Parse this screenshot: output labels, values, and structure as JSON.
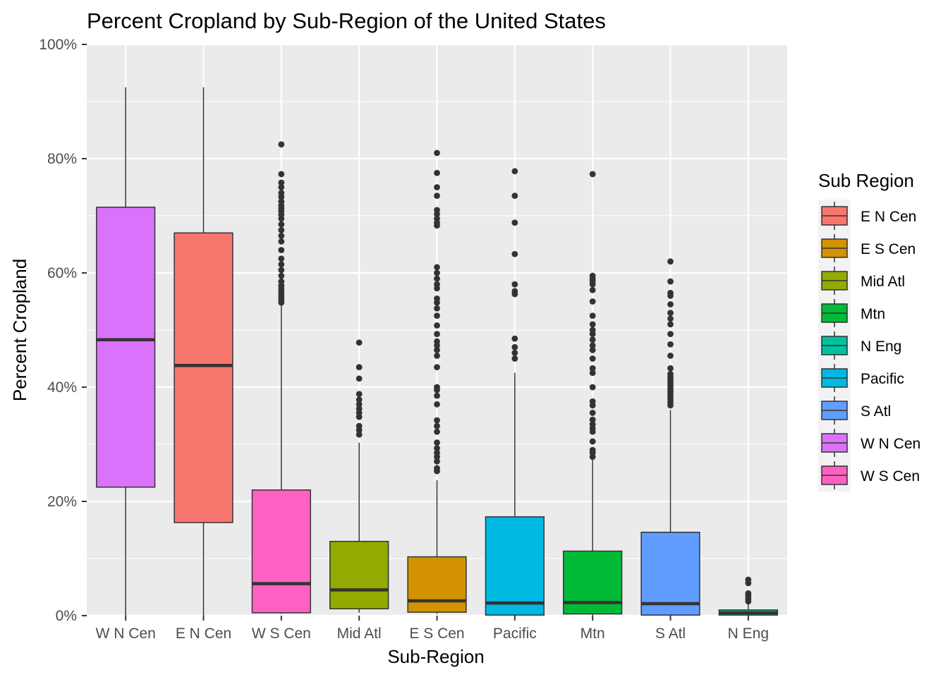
{
  "chart_data": {
    "type": "boxplot",
    "title": "Percent Cropland by Sub-Region of the United States",
    "xlabel": "Sub-Region",
    "ylabel": "Percent Cropland",
    "ylim": [
      0,
      100
    ],
    "yticks": [
      0,
      20,
      40,
      60,
      80,
      100
    ],
    "ytick_labels": [
      "0%",
      "20%",
      "40%",
      "60%",
      "80%",
      "100%"
    ],
    "panel_background": "#EBEBEB",
    "grid_color": "#FFFFFF",
    "box_outline_color": "#333333",
    "legend": {
      "title": "Sub Region",
      "entries": [
        {
          "label": "E N Cen",
          "color": "#F8766D"
        },
        {
          "label": "E S Cen",
          "color": "#D39200"
        },
        {
          "label": "Mid Atl",
          "color": "#93AA00"
        },
        {
          "label": "Mtn",
          "color": "#00BA38"
        },
        {
          "label": "N Eng",
          "color": "#00C19F"
        },
        {
          "label": "Pacific",
          "color": "#00B9E3"
        },
        {
          "label": "S Atl",
          "color": "#619CFF"
        },
        {
          "label": "W N Cen",
          "color": "#DB72FB"
        },
        {
          "label": "W S Cen",
          "color": "#FF61C3"
        }
      ]
    },
    "categories": [
      "W N Cen",
      "E N Cen",
      "W S Cen",
      "Mid Atl",
      "E S Cen",
      "Pacific",
      "Mtn",
      "S Atl",
      "N Eng"
    ],
    "boxes": [
      {
        "name": "W N Cen",
        "color": "#DB72FB",
        "min": 0,
        "q1": 22.5,
        "median": 48.3,
        "q3": 71.5,
        "max": 92.5,
        "outliers": []
      },
      {
        "name": "E N Cen",
        "color": "#F8766D",
        "min": 0,
        "q1": 16.3,
        "median": 43.8,
        "q3": 67.0,
        "max": 92.5,
        "outliers": []
      },
      {
        "name": "W S Cen",
        "color": "#FF61C3",
        "min": 0.3,
        "q1": 0.5,
        "median": 5.6,
        "q3": 22.0,
        "max": 54.5,
        "outliers": [
          54.8,
          55.3,
          55.8,
          56.3,
          56.8,
          57.3,
          57.8,
          58.5,
          59.5,
          60.5,
          61.5,
          62.5,
          64.0,
          65.5,
          66.5,
          67.5,
          68.5,
          69.5,
          70.2,
          70.8,
          71.3,
          71.8,
          72.5,
          73.3,
          74.0,
          75.0,
          75.8,
          77.3,
          82.5
        ]
      },
      {
        "name": "Mid Atl",
        "color": "#93AA00",
        "min": 0.5,
        "q1": 1.2,
        "median": 4.5,
        "q3": 13.0,
        "max": 30.3,
        "outliers": [
          31.7,
          32.5,
          33.2,
          34.8,
          35.5,
          36.2,
          37.0,
          37.8,
          38.8,
          41.5,
          43.5,
          47.8
        ]
      },
      {
        "name": "E S Cen",
        "color": "#D39200",
        "min": 0.3,
        "q1": 0.6,
        "median": 2.6,
        "q3": 10.3,
        "max": 23.7,
        "outliers": [
          25.3,
          25.8,
          27.0,
          27.8,
          28.5,
          29.3,
          30.3,
          32.2,
          33.2,
          34.2,
          37.0,
          38.5,
          39.5,
          40.0,
          43.5,
          45.5,
          46.5,
          47.3,
          48.0,
          49.3,
          50.8,
          52.5,
          53.8,
          54.8,
          55.5,
          57.3,
          58.0,
          59.0,
          60.0,
          61.0,
          68.3,
          68.8,
          69.5,
          70.3,
          71.0,
          73.5,
          75.0,
          77.5,
          81.0
        ]
      },
      {
        "name": "Pacific",
        "color": "#00B9E3",
        "min": 0,
        "q1": 0.1,
        "median": 2.2,
        "q3": 17.3,
        "max": 42.5,
        "outliers": [
          45.0,
          46.0,
          47.0,
          48.5,
          56.3,
          56.8,
          58.0,
          63.3,
          68.8,
          73.5,
          77.8
        ]
      },
      {
        "name": "Mtn",
        "color": "#00BA38",
        "min": 0,
        "q1": 0.3,
        "median": 2.3,
        "q3": 11.3,
        "max": 27.3,
        "outliers": [
          27.8,
          28.5,
          29.0,
          30.5,
          32.2,
          32.8,
          33.5,
          34.3,
          35.5,
          36.8,
          37.5,
          40.0,
          42.5,
          43.3,
          45.0,
          46.5,
          47.3,
          48.3,
          49.3,
          50.0,
          51.0,
          52.5,
          55.0,
          57.0,
          58.0,
          58.5,
          59.0,
          59.5,
          77.3
        ]
      },
      {
        "name": "S Atl",
        "color": "#619CFF",
        "min": 0,
        "q1": 0.1,
        "median": 2.1,
        "q3": 14.6,
        "max": 36.0,
        "outliers": [
          36.8,
          37.3,
          37.8,
          38.3,
          38.8,
          39.3,
          39.8,
          40.3,
          40.8,
          41.3,
          41.8,
          42.3,
          43.3,
          45.5,
          47.5,
          49.3,
          51.0,
          52.0,
          53.0,
          54.5,
          56.0,
          56.5,
          58.5,
          62.0
        ]
      },
      {
        "name": "N Eng",
        "color": "#00C19F",
        "min": 0,
        "q1": 0.1,
        "median": 0.5,
        "q3": 1.0,
        "max": 2.0,
        "outliers": [
          2.5,
          3.0,
          3.5,
          3.9,
          5.7,
          6.3
        ]
      }
    ]
  }
}
